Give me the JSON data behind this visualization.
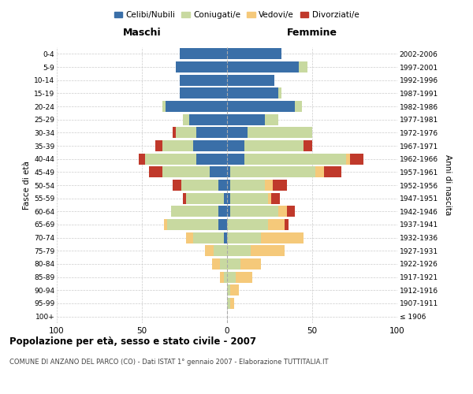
{
  "age_groups": [
    "100+",
    "95-99",
    "90-94",
    "85-89",
    "80-84",
    "75-79",
    "70-74",
    "65-69",
    "60-64",
    "55-59",
    "50-54",
    "45-49",
    "40-44",
    "35-39",
    "30-34",
    "25-29",
    "20-24",
    "15-19",
    "10-14",
    "5-9",
    "0-4"
  ],
  "birth_years": [
    "≤ 1906",
    "1907-1911",
    "1912-1916",
    "1917-1921",
    "1922-1926",
    "1927-1931",
    "1932-1936",
    "1937-1941",
    "1942-1946",
    "1947-1951",
    "1952-1956",
    "1957-1961",
    "1962-1966",
    "1967-1971",
    "1972-1976",
    "1977-1981",
    "1982-1986",
    "1987-1991",
    "1992-1996",
    "1997-2001",
    "2002-2006"
  ],
  "maschi": {
    "celibi": [
      0,
      0,
      0,
      0,
      0,
      0,
      2,
      5,
      5,
      2,
      5,
      10,
      18,
      20,
      18,
      22,
      36,
      28,
      28,
      30,
      28
    ],
    "coniugati": [
      0,
      0,
      0,
      2,
      4,
      8,
      18,
      30,
      28,
      22,
      22,
      28,
      30,
      18,
      12,
      4,
      2,
      0,
      0,
      0,
      0
    ],
    "vedovi": [
      0,
      0,
      0,
      2,
      5,
      5,
      4,
      2,
      0,
      0,
      0,
      0,
      0,
      0,
      0,
      0,
      0,
      0,
      0,
      0,
      0
    ],
    "divorziati": [
      0,
      0,
      0,
      0,
      0,
      0,
      0,
      0,
      0,
      2,
      5,
      8,
      4,
      4,
      2,
      0,
      0,
      0,
      0,
      0,
      0
    ]
  },
  "femmine": {
    "nubili": [
      0,
      0,
      0,
      0,
      0,
      0,
      0,
      0,
      2,
      2,
      2,
      2,
      10,
      10,
      12,
      22,
      40,
      30,
      28,
      42,
      32
    ],
    "coniugate": [
      0,
      2,
      2,
      5,
      8,
      14,
      20,
      24,
      28,
      22,
      20,
      50,
      60,
      35,
      38,
      8,
      4,
      2,
      0,
      5,
      0
    ],
    "vedove": [
      0,
      2,
      5,
      10,
      12,
      20,
      25,
      10,
      5,
      2,
      5,
      5,
      2,
      0,
      0,
      0,
      0,
      0,
      0,
      0,
      0
    ],
    "divorziate": [
      0,
      0,
      0,
      0,
      0,
      0,
      0,
      2,
      5,
      5,
      8,
      10,
      8,
      5,
      0,
      0,
      0,
      0,
      0,
      0,
      0
    ]
  },
  "colors": {
    "celibi": "#3a6fa8",
    "coniugati": "#c8d9a0",
    "vedovi": "#f5c97a",
    "divorziati": "#c0392b"
  },
  "xlim": 100,
  "title": "Popolazione per età, sesso e stato civile - 2007",
  "subtitle": "COMUNE DI ANZANO DEL PARCO (CO) - Dati ISTAT 1° gennaio 2007 - Elaborazione TUTTITALIA.IT",
  "xlabel_left": "Maschi",
  "xlabel_right": "Femmine",
  "ylabel": "Fasce di età",
  "ylabel_right": "Anni di nascita",
  "legend_labels": [
    "Celibi/Nubili",
    "Coniugati/e",
    "Vedovi/e",
    "Divorziati/e"
  ]
}
